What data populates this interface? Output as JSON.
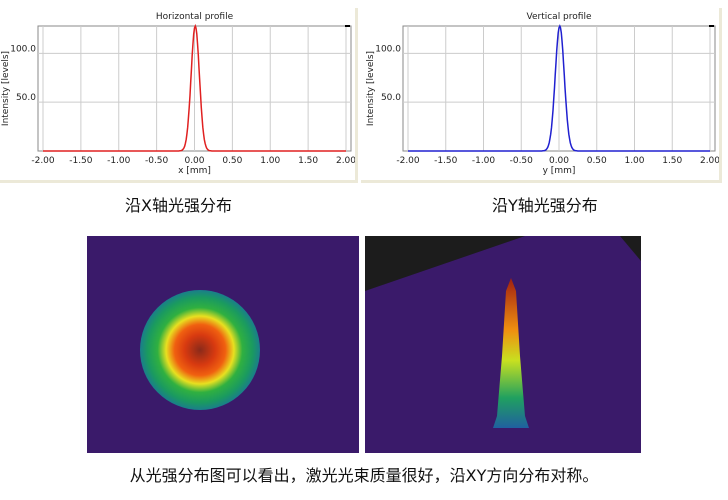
{
  "chart_data": [
    {
      "type": "line",
      "title": "Horizontal profile",
      "xlabel": "x [mm]",
      "ylabel": "Intensity [levels]",
      "xlim": [
        -2.05,
        2.05
      ],
      "ylim": [
        0,
        128
      ],
      "xticks": [
        "-2.00",
        "-1.50",
        "-1.00",
        "-0.50",
        "0.00",
        "0.50",
        "1.00",
        "1.50",
        "2.00"
      ],
      "yticks": [
        "50.0",
        "100.0"
      ],
      "grid": true,
      "color": "#e02020",
      "series": [
        {
          "name": "Horizontal",
          "center": 0.01,
          "sigma": 0.055,
          "peak": 128,
          "x": [
            -0.2,
            -0.15,
            -0.1,
            -0.05,
            0,
            0.01,
            0.05,
            0.1,
            0.15,
            0.2
          ],
          "y": [
            0,
            2,
            23,
            82,
            125,
            128,
            98,
            33,
            4,
            0
          ]
        }
      ]
    },
    {
      "type": "line",
      "title": "Vertical profile",
      "xlabel": "y [mm]",
      "ylabel": "Intensity [levels]",
      "xlim": [
        -2.05,
        2.05
      ],
      "ylim": [
        0,
        128
      ],
      "xticks": [
        "-2.00",
        "-1.50",
        "-1.00",
        "-0.50",
        "0.00",
        "0.50",
        "1.00",
        "1.50",
        "2.00"
      ],
      "yticks": [
        "50.0",
        "100.0"
      ],
      "grid": true,
      "color": "#2020d0",
      "series": [
        {
          "name": "Vertical",
          "center": 0.01,
          "sigma": 0.06,
          "peak": 128,
          "x": [
            -0.2,
            -0.15,
            -0.1,
            -0.05,
            0,
            0.01,
            0.05,
            0.1,
            0.15,
            0.2,
            0.25
          ],
          "y": [
            0,
            3,
            27,
            85,
            126,
            128,
            102,
            40,
            7,
            1,
            0
          ]
        }
      ]
    }
  ],
  "captions": {
    "horizontal": "沿X轴光强分布",
    "vertical": "沿Y轴光强分布"
  },
  "footer": "从光强分布图可以看出，激光光束质量很好，沿XY方向分布对称。"
}
